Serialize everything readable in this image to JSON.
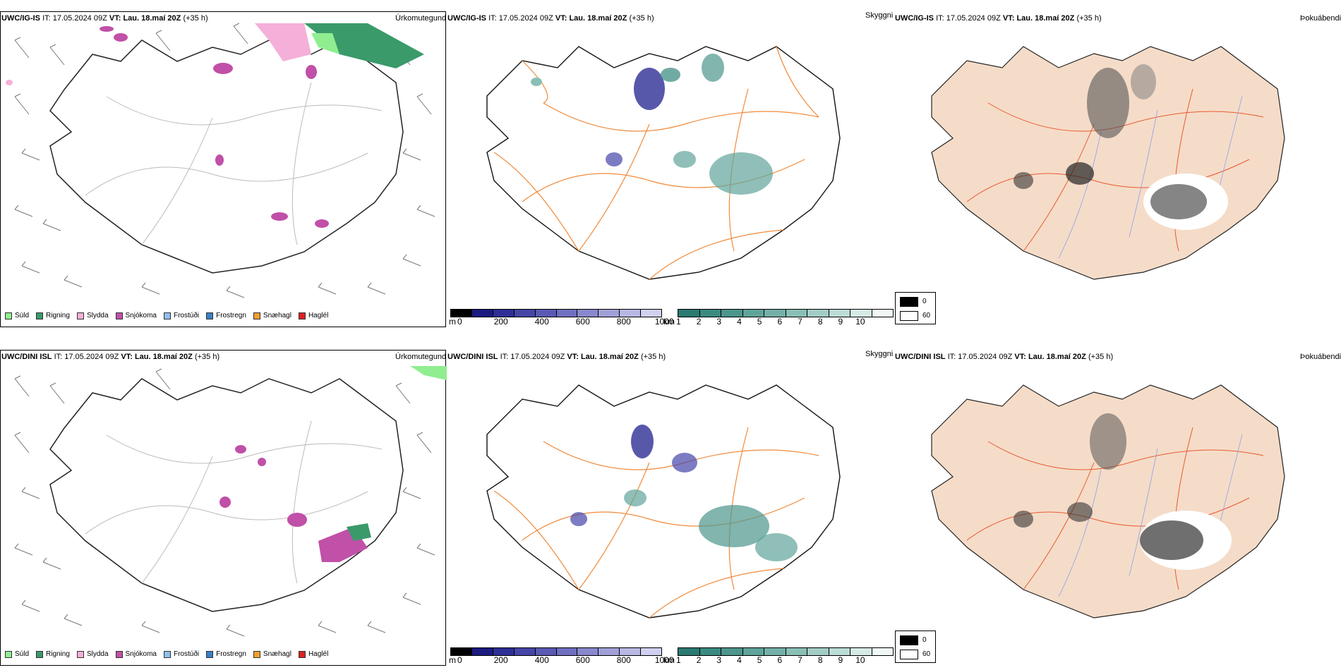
{
  "rows": [
    {
      "model": "UWC/IG-IS",
      "it_label": "IT:",
      "it_value": "17.05.2024 09Z",
      "vt_label": "VT:",
      "vt_value": "Lau. 18.maí 20Z",
      "lead": "(+35 h)"
    },
    {
      "model": "UWC/DINI ISL",
      "it_label": "IT:",
      "it_value": "17.05.2024 09Z",
      "vt_label": "VT:",
      "vt_value": "Lau. 18.maí 20Z",
      "lead": "(+35 h)"
    }
  ],
  "panel_titles": {
    "precip": "Úrkomutegund",
    "visibility": "Skyggni",
    "fog": "Þokuábendi"
  },
  "precip_legend": [
    {
      "label": "Súld",
      "color": "#90ee90"
    },
    {
      "label": "Rigning",
      "color": "#3a9a6a"
    },
    {
      "label": "Slydda",
      "color": "#f4b0d8"
    },
    {
      "label": "Snjókoma",
      "color": "#c050a8"
    },
    {
      "label": "Frostúði",
      "color": "#90c0f0"
    },
    {
      "label": "Frostregn",
      "color": "#3a80c8"
    },
    {
      "label": "Snæhagl",
      "color": "#f0a030"
    },
    {
      "label": "Haglél",
      "color": "#e02020"
    }
  ],
  "cloud_base_scale": {
    "unit": "m",
    "ticks": [
      "0",
      "200",
      "400",
      "600",
      "800",
      "1000"
    ],
    "colors": [
      "#000000",
      "#1a1a80",
      "#2e2e96",
      "#4545a8",
      "#5a5ab4",
      "#7070c0",
      "#8888cc",
      "#a0a0d8",
      "#b8b8e4",
      "#d0d0f0"
    ]
  },
  "visibility_scale": {
    "unit": "km",
    "ticks": [
      "1",
      "2",
      "3",
      "4",
      "5",
      "6",
      "7",
      "8",
      "9",
      "10"
    ],
    "colors": [
      "#2a7a72",
      "#3a8a80",
      "#4c968c",
      "#5fa49a",
      "#74b0a8",
      "#8abfb6",
      "#a2cdc6",
      "#bcdcd6",
      "#d6eae6",
      "#f0f8f6"
    ]
  },
  "fog_legend": [
    {
      "value": "0",
      "color": "#000000"
    },
    {
      "value": "60",
      "color": "#ffffff"
    }
  ],
  "colors": {
    "land_fog": "#f5dcc8",
    "roads": "#f08a3a",
    "rivers": "#8aa0f0",
    "coast": "#222222"
  }
}
